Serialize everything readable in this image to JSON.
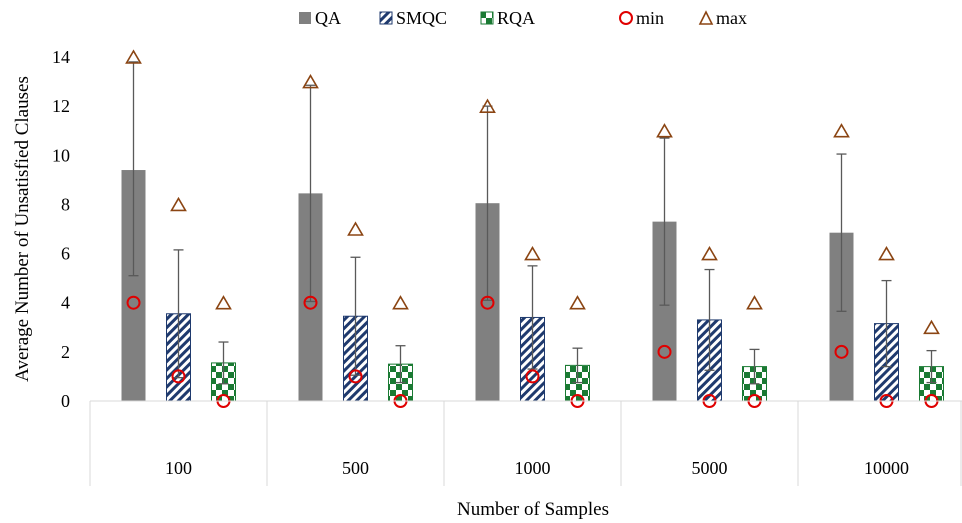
{
  "chart_data": {
    "type": "bar",
    "xlabel": "Number of Samples",
    "ylabel": "Average Number of Unsatisfied Clauses",
    "categories": [
      "100",
      "500",
      "1000",
      "5000",
      "10000"
    ],
    "ylim": [
      0,
      14
    ],
    "yticks": [
      0,
      2,
      4,
      6,
      8,
      10,
      12,
      14
    ],
    "grid": false,
    "legend_position": "top",
    "series": [
      {
        "name": "QA",
        "kind": "bar",
        "pattern": "solid",
        "color": "#808080",
        "values": [
          9.4,
          8.45,
          8.05,
          7.3,
          6.85
        ],
        "error_plus": [
          4.4,
          4.4,
          3.95,
          3.4,
          3.2
        ],
        "error_minus": [
          4.3,
          4.4,
          3.95,
          3.4,
          3.2
        ]
      },
      {
        "name": "SMQC",
        "kind": "bar",
        "pattern": "diagonal-stripes",
        "color": "#1f3a6e",
        "values": [
          3.55,
          3.45,
          3.4,
          3.3,
          3.15
        ],
        "error_plus": [
          2.6,
          2.4,
          2.1,
          2.05,
          1.75
        ],
        "error_minus": [
          2.6,
          2.4,
          2.1,
          2.05,
          1.75
        ]
      },
      {
        "name": "RQA",
        "kind": "bar",
        "pattern": "checkerboard",
        "color": "#1a7a33",
        "values": [
          1.55,
          1.5,
          1.45,
          1.4,
          1.4
        ],
        "error_plus": [
          0.85,
          0.75,
          0.7,
          0.7,
          0.65
        ],
        "error_minus": [
          0.85,
          0.75,
          0.7,
          0.7,
          0.65
        ]
      },
      {
        "name": "min",
        "kind": "marker",
        "marker": "circle",
        "color": "#e00000",
        "values": [
          [
            4,
            1,
            0
          ],
          [
            4,
            1,
            0
          ],
          [
            4,
            1,
            0
          ],
          [
            2,
            0,
            0
          ],
          [
            2,
            0,
            0
          ]
        ]
      },
      {
        "name": "max",
        "kind": "marker",
        "marker": "triangle",
        "color": "#8b4513",
        "values": [
          [
            14,
            8,
            4
          ],
          [
            13,
            7,
            4
          ],
          [
            12,
            6,
            4
          ],
          [
            11,
            6,
            4
          ],
          [
            11,
            6,
            3
          ]
        ]
      }
    ]
  }
}
